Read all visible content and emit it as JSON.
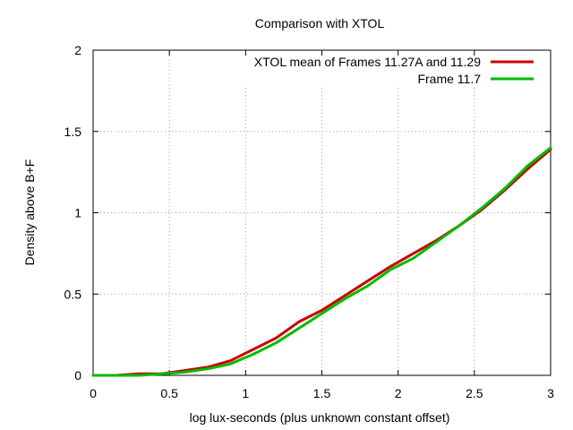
{
  "chart_data": {
    "type": "line",
    "title": "Comparison with XTOL",
    "xlabel": "log lux-seconds (plus unknown constant offset)",
    "ylabel": "Density above B+F",
    "xlim": [
      0,
      3
    ],
    "ylim": [
      0,
      2
    ],
    "xticks": [
      0,
      0.5,
      1,
      1.5,
      2,
      2.5,
      3
    ],
    "xtick_labels": [
      "0",
      "0.5",
      "1",
      "1.5",
      "2",
      "2.5",
      "3"
    ],
    "yticks": [
      0,
      0.5,
      1,
      1.5,
      2
    ],
    "ytick_labels": [
      "0",
      "0.5",
      "1",
      "1.5",
      "2"
    ],
    "grid": true,
    "legend_position": "top-right",
    "series": [
      {
        "name": "XTOL mean of Frames 11.27A and 11.29",
        "color": "#cc0000",
        "x": [
          0,
          0.15,
          0.3,
          0.45,
          0.6,
          0.75,
          0.9,
          1.05,
          1.2,
          1.35,
          1.5,
          1.65,
          1.8,
          1.95,
          2.1,
          2.25,
          2.4,
          2.55,
          2.7,
          2.85,
          3.0
        ],
        "y": [
          0,
          0,
          0.01,
          0.01,
          0.03,
          0.05,
          0.09,
          0.16,
          0.23,
          0.33,
          0.4,
          0.49,
          0.58,
          0.67,
          0.75,
          0.83,
          0.92,
          1.02,
          1.14,
          1.27,
          1.39
        ]
      },
      {
        "name": "Frame 11.7",
        "color": "#00bb00",
        "x": [
          0,
          0.15,
          0.3,
          0.45,
          0.6,
          0.75,
          0.9,
          1.05,
          1.2,
          1.35,
          1.5,
          1.65,
          1.8,
          1.95,
          2.1,
          2.25,
          2.4,
          2.55,
          2.7,
          2.85,
          3.0
        ],
        "y": [
          0,
          0,
          0,
          0.01,
          0.02,
          0.04,
          0.07,
          0.13,
          0.2,
          0.29,
          0.38,
          0.47,
          0.55,
          0.65,
          0.72,
          0.82,
          0.92,
          1.03,
          1.15,
          1.29,
          1.4
        ]
      }
    ]
  }
}
